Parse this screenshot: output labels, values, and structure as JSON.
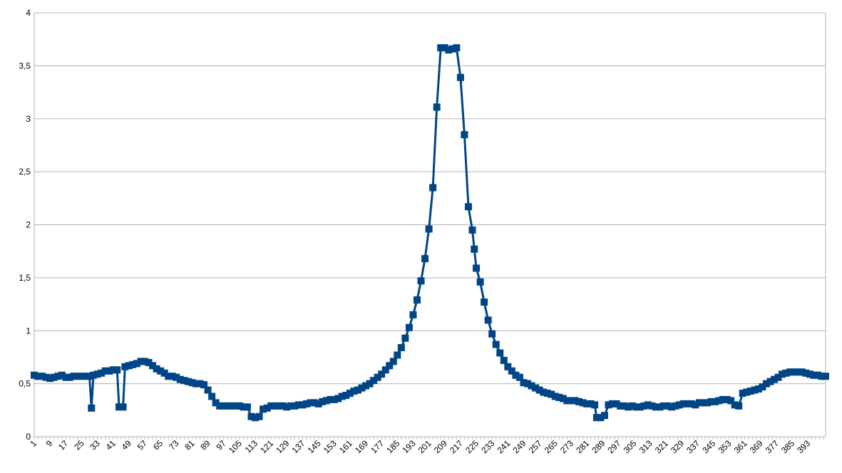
{
  "chart_data": {
    "type": "line",
    "title": "",
    "xlabel": "",
    "ylabel": "",
    "grid": true,
    "x_range": [
      1,
      402
    ],
    "ylim": [
      0,
      4
    ],
    "y_ticks": [
      0,
      0.5,
      1,
      1.5,
      2,
      2.5,
      3,
      3.5,
      4
    ],
    "y_tick_labels": [
      "0",
      "0,5",
      "1",
      "1,5",
      "2",
      "2,5",
      "3",
      "3,5",
      "4"
    ],
    "x_tick_labels": [
      "1",
      "9",
      "17",
      "25",
      "33",
      "41",
      "49",
      "57",
      "65",
      "73",
      "81",
      "89",
      "97",
      "105",
      "113",
      "121",
      "129",
      "137",
      "145",
      "153",
      "161",
      "169",
      "177",
      "185",
      "193",
      "201",
      "209",
      "217",
      "225",
      "233",
      "241",
      "249",
      "257",
      "265",
      "273",
      "281",
      "289",
      "297",
      "305",
      "313",
      "321",
      "329",
      "337",
      "345",
      "353",
      "361",
      "369",
      "377",
      "385",
      "393"
    ],
    "x_tick_values": [
      1,
      9,
      17,
      25,
      33,
      41,
      49,
      57,
      65,
      73,
      81,
      89,
      97,
      105,
      113,
      121,
      129,
      137,
      145,
      153,
      161,
      169,
      177,
      185,
      193,
      201,
      209,
      217,
      225,
      233,
      241,
      249,
      257,
      265,
      273,
      281,
      289,
      297,
      305,
      313,
      321,
      329,
      337,
      345,
      353,
      361,
      369,
      377,
      385,
      393
    ],
    "colors": {
      "series": "#004586",
      "grid": "#b3b3b3",
      "axis": "#b3b3b3"
    },
    "series": [
      {
        "marker": "square",
        "values": [
          [
            1,
            0.58
          ],
          [
            3,
            0.57
          ],
          [
            5,
            0.57
          ],
          [
            7,
            0.56
          ],
          [
            9,
            0.55
          ],
          [
            11,
            0.56
          ],
          [
            13,
            0.57
          ],
          [
            15,
            0.58
          ],
          [
            17,
            0.56
          ],
          [
            19,
            0.56
          ],
          [
            21,
            0.57
          ],
          [
            23,
            0.57
          ],
          [
            25,
            0.57
          ],
          [
            27,
            0.57
          ],
          [
            29,
            0.57
          ],
          [
            30,
            0.27
          ],
          [
            31,
            0.58
          ],
          [
            33,
            0.59
          ],
          [
            35,
            0.6
          ],
          [
            37,
            0.62
          ],
          [
            39,
            0.62
          ],
          [
            41,
            0.63
          ],
          [
            43,
            0.63
          ],
          [
            44,
            0.28
          ],
          [
            46,
            0.28
          ],
          [
            47,
            0.66
          ],
          [
            49,
            0.67
          ],
          [
            51,
            0.68
          ],
          [
            53,
            0.69
          ],
          [
            55,
            0.71
          ],
          [
            57,
            0.71
          ],
          [
            59,
            0.7
          ],
          [
            61,
            0.67
          ],
          [
            63,
            0.64
          ],
          [
            65,
            0.62
          ],
          [
            67,
            0.6
          ],
          [
            69,
            0.57
          ],
          [
            71,
            0.57
          ],
          [
            73,
            0.56
          ],
          [
            75,
            0.54
          ],
          [
            77,
            0.53
          ],
          [
            79,
            0.52
          ],
          [
            81,
            0.51
          ],
          [
            83,
            0.5
          ],
          [
            85,
            0.5
          ],
          [
            87,
            0.49
          ],
          [
            89,
            0.44
          ],
          [
            91,
            0.38
          ],
          [
            93,
            0.32
          ],
          [
            95,
            0.29
          ],
          [
            97,
            0.29
          ],
          [
            99,
            0.29
          ],
          [
            101,
            0.29
          ],
          [
            103,
            0.29
          ],
          [
            105,
            0.29
          ],
          [
            107,
            0.28
          ],
          [
            109,
            0.28
          ],
          [
            111,
            0.19
          ],
          [
            113,
            0.18
          ],
          [
            115,
            0.19
          ],
          [
            117,
            0.26
          ],
          [
            119,
            0.27
          ],
          [
            121,
            0.29
          ],
          [
            123,
            0.29
          ],
          [
            125,
            0.29
          ],
          [
            127,
            0.29
          ],
          [
            129,
            0.28
          ],
          [
            131,
            0.29
          ],
          [
            133,
            0.29
          ],
          [
            135,
            0.3
          ],
          [
            137,
            0.3
          ],
          [
            139,
            0.31
          ],
          [
            141,
            0.32
          ],
          [
            143,
            0.32
          ],
          [
            145,
            0.31
          ],
          [
            147,
            0.33
          ],
          [
            149,
            0.34
          ],
          [
            151,
            0.35
          ],
          [
            153,
            0.35
          ],
          [
            155,
            0.36
          ],
          [
            157,
            0.38
          ],
          [
            159,
            0.39
          ],
          [
            161,
            0.41
          ],
          [
            163,
            0.43
          ],
          [
            165,
            0.44
          ],
          [
            167,
            0.46
          ],
          [
            169,
            0.48
          ],
          [
            171,
            0.5
          ],
          [
            173,
            0.53
          ],
          [
            175,
            0.56
          ],
          [
            177,
            0.59
          ],
          [
            179,
            0.63
          ],
          [
            181,
            0.67
          ],
          [
            183,
            0.71
          ],
          [
            185,
            0.77
          ],
          [
            187,
            0.84
          ],
          [
            189,
            0.93
          ],
          [
            191,
            1.03
          ],
          [
            193,
            1.15
          ],
          [
            195,
            1.29
          ],
          [
            197,
            1.47
          ],
          [
            199,
            1.68
          ],
          [
            201,
            1.96
          ],
          [
            203,
            2.35
          ],
          [
            205,
            3.11
          ],
          [
            207,
            3.67
          ],
          [
            209,
            3.67
          ],
          [
            211,
            3.65
          ],
          [
            213,
            3.66
          ],
          [
            215,
            3.67
          ],
          [
            217,
            3.39
          ],
          [
            219,
            2.85
          ],
          [
            221,
            2.17
          ],
          [
            223,
            1.95
          ],
          [
            224,
            1.77
          ],
          [
            225,
            1.59
          ],
          [
            227,
            1.46
          ],
          [
            229,
            1.27
          ],
          [
            231,
            1.1
          ],
          [
            233,
            0.97
          ],
          [
            235,
            0.87
          ],
          [
            237,
            0.79
          ],
          [
            239,
            0.72
          ],
          [
            241,
            0.66
          ],
          [
            243,
            0.62
          ],
          [
            245,
            0.58
          ],
          [
            247,
            0.56
          ],
          [
            249,
            0.51
          ],
          [
            251,
            0.5
          ],
          [
            253,
            0.48
          ],
          [
            255,
            0.46
          ],
          [
            257,
            0.44
          ],
          [
            259,
            0.42
          ],
          [
            261,
            0.41
          ],
          [
            263,
            0.4
          ],
          [
            265,
            0.38
          ],
          [
            267,
            0.37
          ],
          [
            269,
            0.36
          ],
          [
            271,
            0.34
          ],
          [
            273,
            0.34
          ],
          [
            275,
            0.34
          ],
          [
            277,
            0.33
          ],
          [
            279,
            0.32
          ],
          [
            281,
            0.31
          ],
          [
            283,
            0.31
          ],
          [
            285,
            0.3
          ],
          [
            286,
            0.18
          ],
          [
            288,
            0.18
          ],
          [
            290,
            0.2
          ],
          [
            292,
            0.3
          ],
          [
            294,
            0.31
          ],
          [
            296,
            0.31
          ],
          [
            298,
            0.29
          ],
          [
            300,
            0.29
          ],
          [
            302,
            0.28
          ],
          [
            304,
            0.29
          ],
          [
            306,
            0.28
          ],
          [
            308,
            0.28
          ],
          [
            310,
            0.29
          ],
          [
            312,
            0.3
          ],
          [
            314,
            0.29
          ],
          [
            316,
            0.28
          ],
          [
            318,
            0.28
          ],
          [
            320,
            0.29
          ],
          [
            322,
            0.29
          ],
          [
            324,
            0.28
          ],
          [
            326,
            0.29
          ],
          [
            328,
            0.3
          ],
          [
            330,
            0.31
          ],
          [
            332,
            0.31
          ],
          [
            334,
            0.31
          ],
          [
            336,
            0.3
          ],
          [
            338,
            0.32
          ],
          [
            340,
            0.32
          ],
          [
            342,
            0.32
          ],
          [
            344,
            0.33
          ],
          [
            346,
            0.33
          ],
          [
            348,
            0.34
          ],
          [
            350,
            0.35
          ],
          [
            352,
            0.35
          ],
          [
            354,
            0.34
          ],
          [
            356,
            0.3
          ],
          [
            358,
            0.29
          ],
          [
            360,
            0.41
          ],
          [
            362,
            0.42
          ],
          [
            364,
            0.43
          ],
          [
            366,
            0.44
          ],
          [
            368,
            0.45
          ],
          [
            370,
            0.47
          ],
          [
            372,
            0.5
          ],
          [
            374,
            0.52
          ],
          [
            376,
            0.54
          ],
          [
            378,
            0.56
          ],
          [
            380,
            0.59
          ],
          [
            382,
            0.6
          ],
          [
            384,
            0.61
          ],
          [
            386,
            0.61
          ],
          [
            388,
            0.61
          ],
          [
            390,
            0.61
          ],
          [
            392,
            0.6
          ],
          [
            394,
            0.59
          ],
          [
            396,
            0.58
          ],
          [
            398,
            0.58
          ],
          [
            400,
            0.57
          ],
          [
            402,
            0.57
          ]
        ]
      }
    ]
  }
}
